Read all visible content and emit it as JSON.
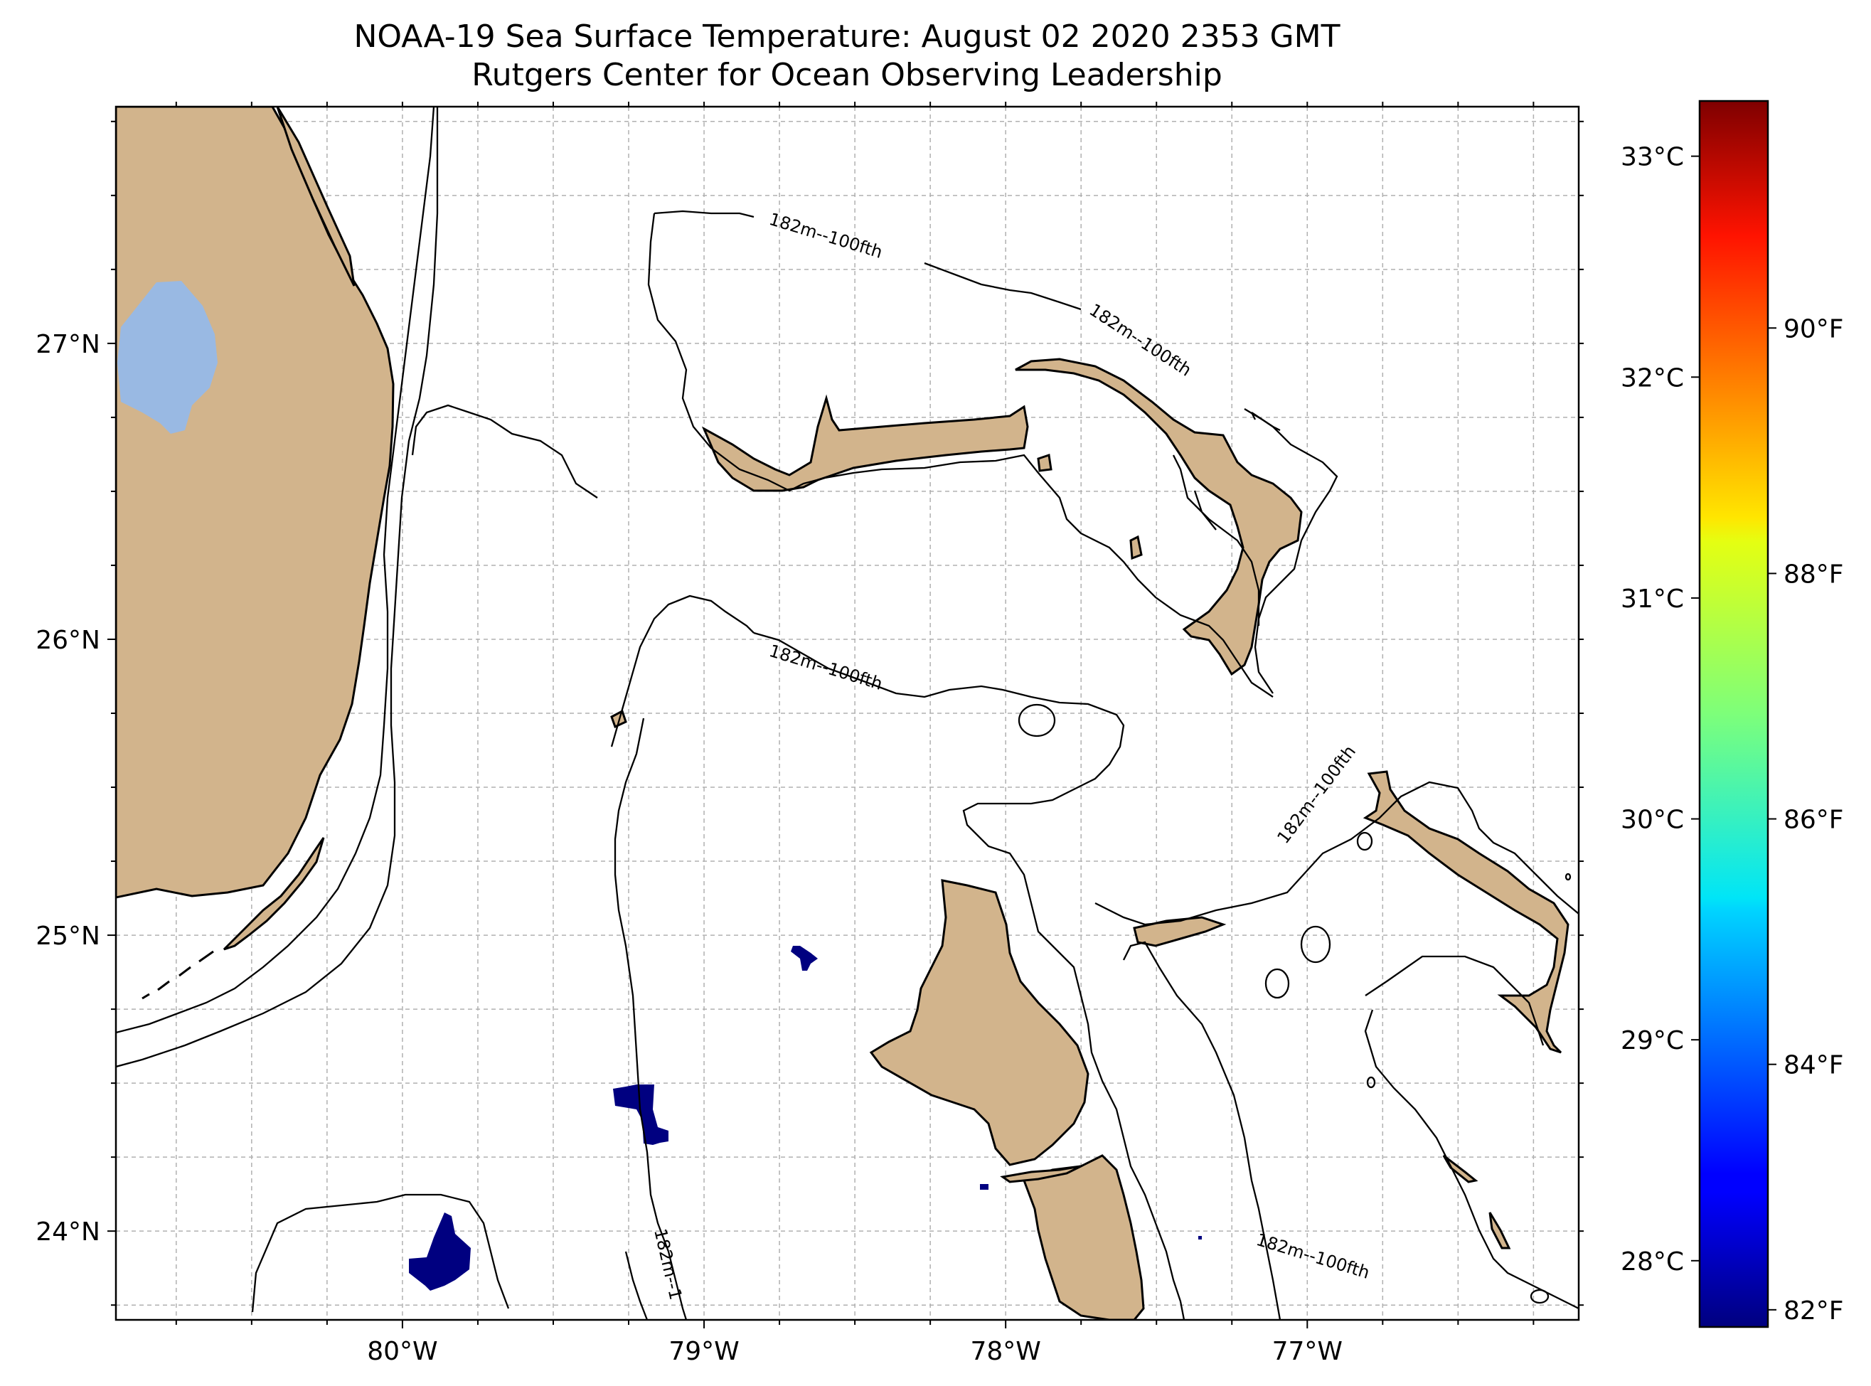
{
  "title": "NOAA-19 Sea Surface Temperature: August 02 2020 2353 GMT",
  "subtitle": "Rutgers Center for Ocean Observing Leadership",
  "colors": {
    "land": "#d2b48c",
    "lake": "#99b9e3",
    "sst_cold": "#000080",
    "grid": "#b0b0b0",
    "coastline": "#000000"
  },
  "map": {
    "lon_range": [
      -80.95,
      -76.1
    ],
    "lat_range": [
      23.7,
      27.8
    ],
    "lon_ticks": [
      {
        "value": -80,
        "label": "80°W"
      },
      {
        "value": -79,
        "label": "79°W"
      },
      {
        "value": -78,
        "label": "78°W"
      },
      {
        "value": -77,
        "label": "77°W"
      }
    ],
    "lat_ticks": [
      {
        "value": 24,
        "label": "24°N"
      },
      {
        "value": 25,
        "label": "25°N"
      },
      {
        "value": 26,
        "label": "26°N"
      },
      {
        "value": 27,
        "label": "27°N"
      }
    ],
    "gridlines": true,
    "contour_label": "182m--100fth"
  },
  "colorbar": {
    "celsius_ticks": [
      {
        "value": 28,
        "label": "28°C"
      },
      {
        "value": 29,
        "label": "29°C"
      },
      {
        "value": 30,
        "label": "30°C"
      },
      {
        "value": 31,
        "label": "31°C"
      },
      {
        "value": 32,
        "label": "32°C"
      },
      {
        "value": 33,
        "label": "33°C"
      }
    ],
    "fahrenheit_ticks": [
      {
        "value": 82,
        "label": "82°F"
      },
      {
        "value": 84,
        "label": "84°F"
      },
      {
        "value": 86,
        "label": "86°F"
      },
      {
        "value": 88,
        "label": "88°F"
      },
      {
        "value": 90,
        "label": "90°F"
      }
    ],
    "range_celsius": [
      27.7,
      33.25
    ],
    "colormap": "jet"
  }
}
